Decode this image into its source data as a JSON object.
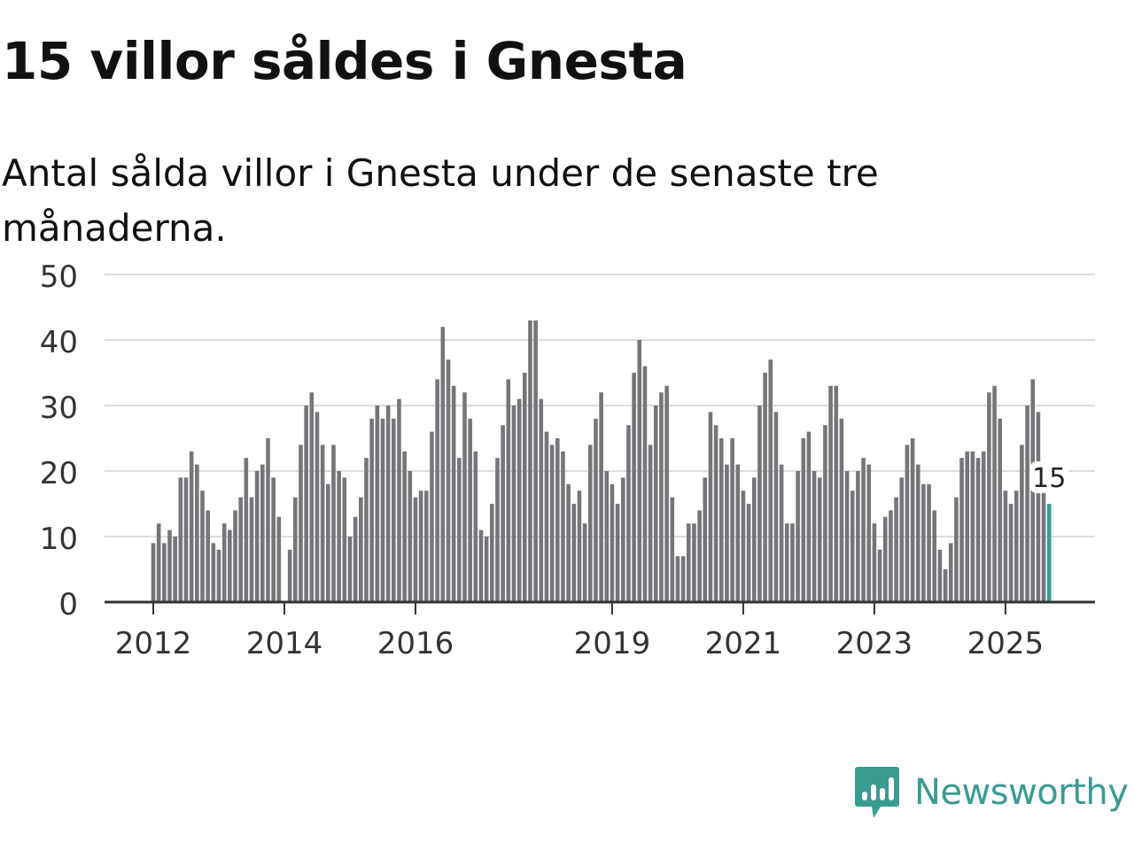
{
  "title": "15 villor såldes i Gnesta",
  "subtitle": "Antal sålda villor i Gnesta under de senaste tre månaderna.",
  "brand": {
    "name": "Newsworthy",
    "icon": "newsworthy-logo-icon",
    "color": "#3a9b92"
  },
  "chart_data": {
    "type": "bar",
    "title": "15 villor såldes i Gnesta",
    "ylim": [
      0,
      50
    ],
    "yticks": [
      0,
      10,
      20,
      30,
      40,
      50
    ],
    "xticks": [
      {
        "label": "2012",
        "index": 0
      },
      {
        "label": "2014",
        "index": 24
      },
      {
        "label": "2016",
        "index": 48
      },
      {
        "label": "2019",
        "index": 84
      },
      {
        "label": "2021",
        "index": 108
      },
      {
        "label": "2023",
        "index": 132
      },
      {
        "label": "2025",
        "index": 156
      }
    ],
    "start": "2012-01",
    "grid": true,
    "bar_color": "#76767a",
    "highlight_color": "#2e9e96",
    "last_value_label": "15",
    "values": [
      9,
      12,
      9,
      11,
      10,
      19,
      19,
      23,
      21,
      17,
      14,
      9,
      8,
      12,
      11,
      14,
      16,
      22,
      16,
      20,
      21,
      25,
      19,
      13,
      0,
      8,
      16,
      24,
      30,
      32,
      29,
      24,
      18,
      24,
      20,
      19,
      10,
      13,
      16,
      22,
      28,
      30,
      28,
      30,
      28,
      31,
      23,
      20,
      16,
      17,
      17,
      26,
      34,
      42,
      37,
      33,
      22,
      32,
      28,
      23,
      11,
      10,
      15,
      22,
      27,
      34,
      30,
      31,
      35,
      43,
      43,
      31,
      26,
      24,
      25,
      23,
      18,
      15,
      17,
      12,
      24,
      28,
      32,
      20,
      18,
      15,
      19,
      27,
      35,
      40,
      36,
      24,
      30,
      32,
      33,
      16,
      7,
      7,
      12,
      12,
      14,
      19,
      29,
      27,
      25,
      21,
      25,
      21,
      17,
      15,
      19,
      30,
      35,
      37,
      29,
      21,
      12,
      12,
      20,
      25,
      26,
      20,
      19,
      27,
      33,
      33,
      28,
      20,
      17,
      20,
      22,
      21,
      12,
      8,
      13,
      14,
      16,
      19,
      24,
      25,
      21,
      18,
      18,
      14,
      8,
      5,
      9,
      16,
      22,
      23,
      23,
      22,
      23,
      32,
      33,
      28,
      17,
      15,
      17,
      24,
      30,
      34,
      29,
      17,
      15
    ]
  }
}
